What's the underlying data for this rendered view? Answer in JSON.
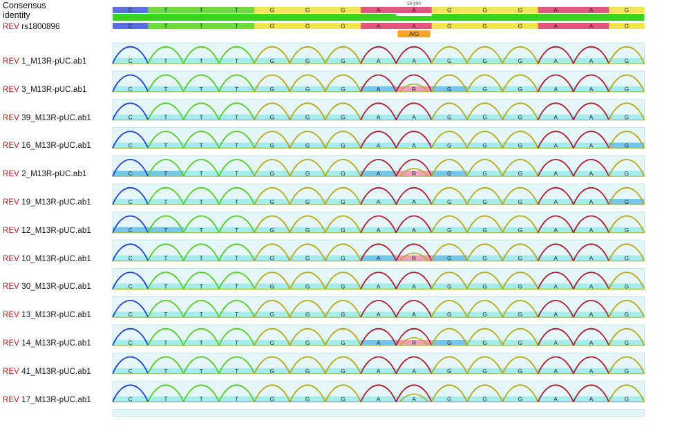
{
  "consensus": {
    "label_line1": "Consensus",
    "label_line2": "identity",
    "bases": [
      "C",
      "T",
      "T",
      "T",
      "G",
      "G",
      "G",
      "A",
      "A",
      "G",
      "G",
      "G",
      "A",
      "A",
      "G"
    ],
    "position_label": "50,990"
  },
  "reference": {
    "prefix": "REV",
    "name": "rs1800896",
    "bases": [
      "C",
      "T",
      "T",
      "T",
      "G",
      "G",
      "G",
      "A",
      "A",
      "G",
      "G",
      "G",
      "A",
      "A",
      "G"
    ],
    "variant_label": "A/G"
  },
  "base_colors": {
    "A": "#e8547a",
    "C": "#5b6fe0",
    "G": "#f2e64c",
    "T": "#6fda3c",
    "R": "#f0a0b8"
  },
  "trace_colors": {
    "A": "#b01a2a",
    "C": "#1f3fd0",
    "G": "#b8a816",
    "T": "#55cc22"
  },
  "variant_color": "#f2a52a",
  "reads": [
    {
      "prefix": "REV",
      "name": "1_M13R-pUC.ab1",
      "calls": [
        "C",
        "T",
        "T",
        "T",
        "G",
        "G",
        "G",
        "A",
        "A",
        "G",
        "G",
        "G",
        "A",
        "A",
        "G"
      ],
      "highlights": [],
      "het": false
    },
    {
      "prefix": "REV",
      "name": "3_M13R-pUC.ab1",
      "calls": [
        "C",
        "T",
        "T",
        "T",
        "G",
        "G",
        "G",
        "A",
        "R",
        "G",
        "G",
        "G",
        "A",
        "A",
        "G"
      ],
      "highlights": [
        7,
        8,
        9
      ],
      "het": true
    },
    {
      "prefix": "REV",
      "name": "39_M13R-pUC.ab1",
      "calls": [
        "C",
        "T",
        "T",
        "T",
        "G",
        "G",
        "G",
        "A",
        "A",
        "G",
        "G",
        "G",
        "A",
        "A",
        "G"
      ],
      "highlights": [],
      "het": false
    },
    {
      "prefix": "REV",
      "name": "16_M13R-pUC.ab1",
      "calls": [
        "C",
        "T",
        "T",
        "T",
        "G",
        "G",
        "G",
        "A",
        "A",
        "G",
        "G",
        "G",
        "A",
        "A",
        "G"
      ],
      "highlights": [
        14
      ],
      "het": false
    },
    {
      "prefix": "REV",
      "name": "2_M13R-pUC.ab1",
      "calls": [
        "C",
        "T",
        "T",
        "T",
        "G",
        "G",
        "G",
        "A",
        "R",
        "G",
        "G",
        "G",
        "A",
        "A",
        "G"
      ],
      "highlights": [
        0,
        1,
        7,
        8,
        9
      ],
      "het": true
    },
    {
      "prefix": "REV",
      "name": "19_M13R-pUC.ab1",
      "calls": [
        "C",
        "T",
        "T",
        "T",
        "G",
        "G",
        "G",
        "A",
        "A",
        "G",
        "G",
        "G",
        "A",
        "A",
        "G"
      ],
      "highlights": [
        14
      ],
      "het": false
    },
    {
      "prefix": "REV",
      "name": "12_M13R-pUC.ab1",
      "calls": [
        "C",
        "T",
        "T",
        "T",
        "G",
        "G",
        "G",
        "A",
        "A",
        "G",
        "G",
        "G",
        "A",
        "A",
        "G"
      ],
      "highlights": [
        0,
        1
      ],
      "het": false
    },
    {
      "prefix": "REV",
      "name": "10_M13R-pUC.ab1",
      "calls": [
        "C",
        "T",
        "T",
        "T",
        "G",
        "G",
        "G",
        "A",
        "R",
        "G",
        "G",
        "G",
        "A",
        "A",
        "G"
      ],
      "highlights": [
        7,
        8,
        9
      ],
      "het": true
    },
    {
      "prefix": "REV",
      "name": "30_M13R-pUC.ab1",
      "calls": [
        "C",
        "T",
        "T",
        "T",
        "G",
        "G",
        "G",
        "A",
        "A",
        "G",
        "G",
        "G",
        "A",
        "A",
        "G"
      ],
      "highlights": [],
      "het": false
    },
    {
      "prefix": "REV",
      "name": "13_M13R-pUC.ab1",
      "calls": [
        "C",
        "T",
        "T",
        "T",
        "G",
        "G",
        "G",
        "A",
        "A",
        "G",
        "G",
        "G",
        "A",
        "A",
        "G"
      ],
      "highlights": [],
      "het": false
    },
    {
      "prefix": "REV",
      "name": "14_M13R-pUC.ab1",
      "calls": [
        "C",
        "T",
        "T",
        "T",
        "G",
        "G",
        "G",
        "A",
        "R",
        "G",
        "G",
        "G",
        "A",
        "A",
        "G"
      ],
      "highlights": [
        7,
        8,
        9
      ],
      "het": true
    },
    {
      "prefix": "REV",
      "name": "41_M13R-pUC.ab1",
      "calls": [
        "C",
        "T",
        "T",
        "T",
        "G",
        "G",
        "G",
        "A",
        "A",
        "G",
        "G",
        "G",
        "A",
        "A",
        "G"
      ],
      "highlights": [],
      "het": false
    },
    {
      "prefix": "REV",
      "name": "17_M13R-pUC.ab1",
      "calls": [
        "C",
        "T",
        "T",
        "T",
        "G",
        "G",
        "G",
        "A",
        "A",
        "G",
        "G",
        "G",
        "A",
        "A",
        "G"
      ],
      "highlights": [],
      "het": true
    }
  ]
}
